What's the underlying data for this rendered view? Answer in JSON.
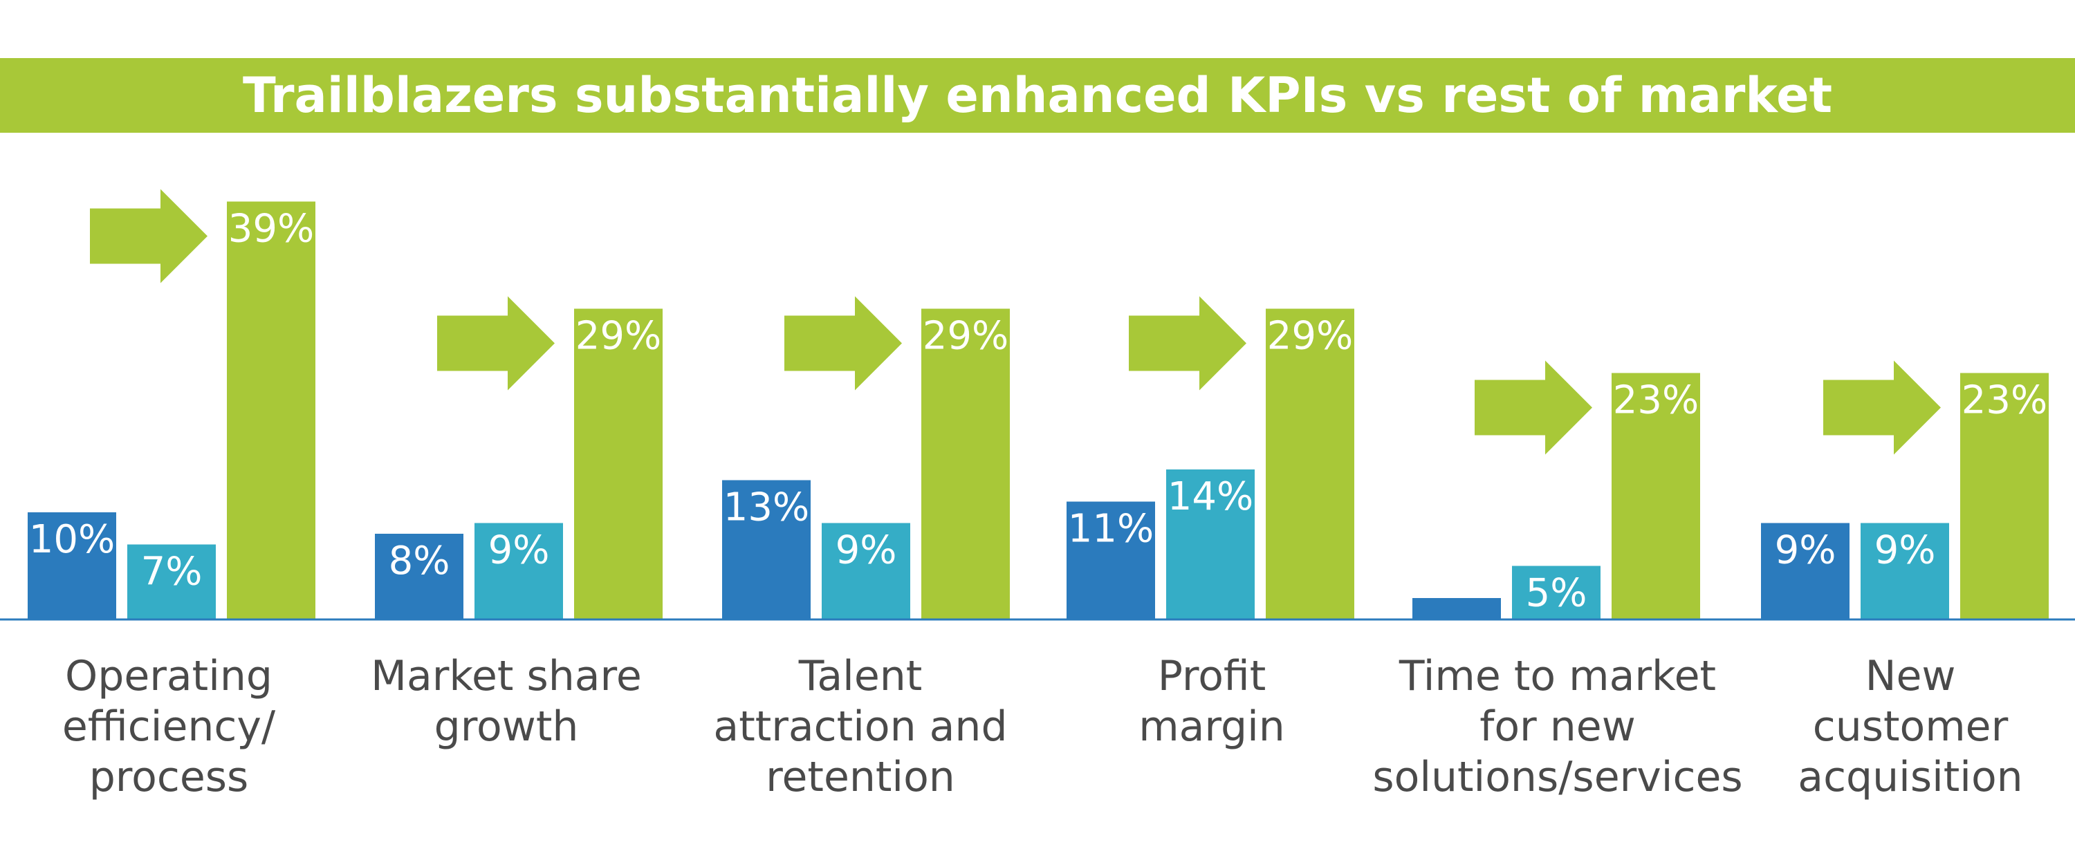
{
  "colors": {
    "title_bg": "#a8c838",
    "series1": "#2b7bbd",
    "series2": "#35adc6",
    "series3": "#a8c838",
    "axis": "#2b7bbd",
    "category_text": "#4a4a4a"
  },
  "chart_data": {
    "type": "bar",
    "title": "Trailblazers substantially enhanced KPIs vs rest of market",
    "categories": [
      [
        "Operating",
        "efficiency/",
        "process"
      ],
      [
        "Market share",
        "growth"
      ],
      [
        "Talent",
        "attraction and",
        "retention"
      ],
      [
        "Profit",
        "margin"
      ],
      [
        "Time to market",
        "for new",
        "solutions/services"
      ],
      [
        "New",
        "customer",
        "acquisition"
      ]
    ],
    "series": [
      {
        "name": "series-1",
        "values": [
          10,
          8,
          13,
          11,
          2,
          9
        ],
        "labels": [
          "10%",
          "8%",
          "13%",
          "11%",
          "",
          "9%"
        ]
      },
      {
        "name": "series-2",
        "values": [
          7,
          9,
          9,
          14,
          5,
          9
        ],
        "labels": [
          "7%",
          "9%",
          "9%",
          "14%",
          "5%",
          "9%"
        ]
      },
      {
        "name": "series-3",
        "values": [
          39,
          29,
          29,
          29,
          23,
          23
        ],
        "labels": [
          "39%",
          "29%",
          "29%",
          "29%",
          "23%",
          "23%"
        ]
      }
    ],
    "arrows_point_to": "series-3",
    "xlabel": "",
    "ylabel": "",
    "ylim": [
      0,
      42
    ],
    "grid": false,
    "legend": "none"
  }
}
